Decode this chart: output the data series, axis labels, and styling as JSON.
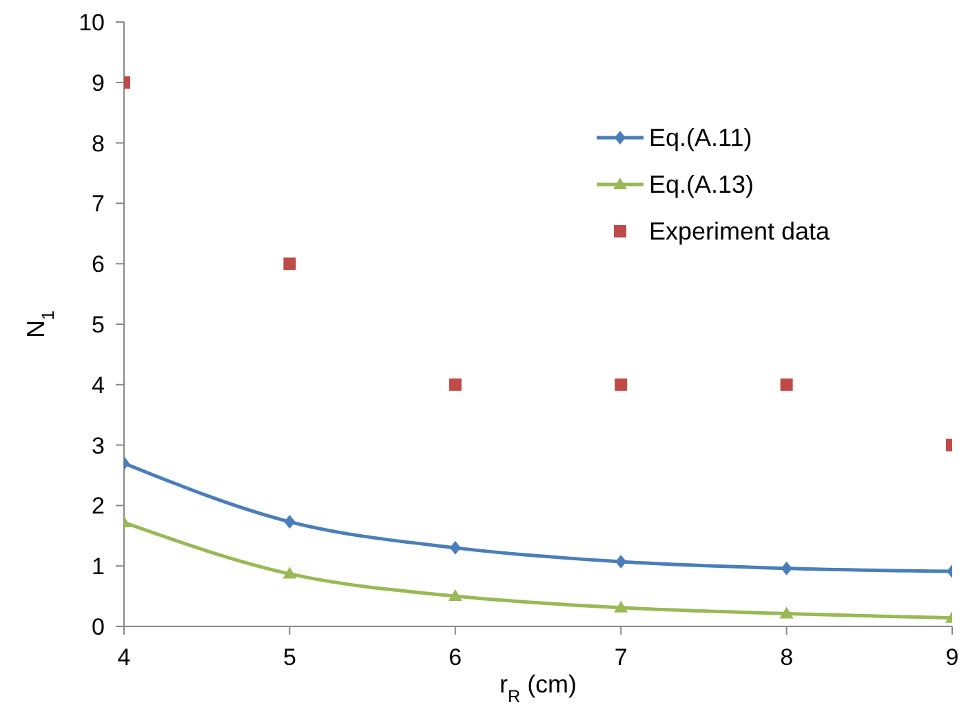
{
  "chart_data": {
    "type": "line",
    "xlabel": "r$_{R}$ (cm)",
    "ylabel": "N$_{1}$",
    "x": [
      4,
      5,
      6,
      7,
      8,
      9
    ],
    "xlim": [
      4,
      9
    ],
    "xticks": [
      4,
      5,
      6,
      7,
      8,
      9
    ],
    "ylim": [
      0,
      10
    ],
    "yticks": [
      0,
      1,
      2,
      3,
      4,
      5,
      6,
      7,
      8,
      9,
      10
    ],
    "grid": false,
    "legend": "top right",
    "series": [
      {
        "name": "Eq.(A.11)",
        "color": "#4a7ebb",
        "marker": "diamond",
        "values": [
          2.7,
          1.73,
          1.3,
          1.07,
          0.96,
          0.91
        ]
      },
      {
        "name": "Eq.(A.13)",
        "color": "#98b954",
        "marker": "triangle",
        "values": [
          1.72,
          0.87,
          0.5,
          0.31,
          0.21,
          0.14
        ]
      },
      {
        "name": "Experiment data",
        "type": "scatter",
        "color": "#be4b48",
        "marker": "square",
        "values": [
          9,
          6,
          4,
          4,
          4,
          3
        ]
      }
    ]
  }
}
